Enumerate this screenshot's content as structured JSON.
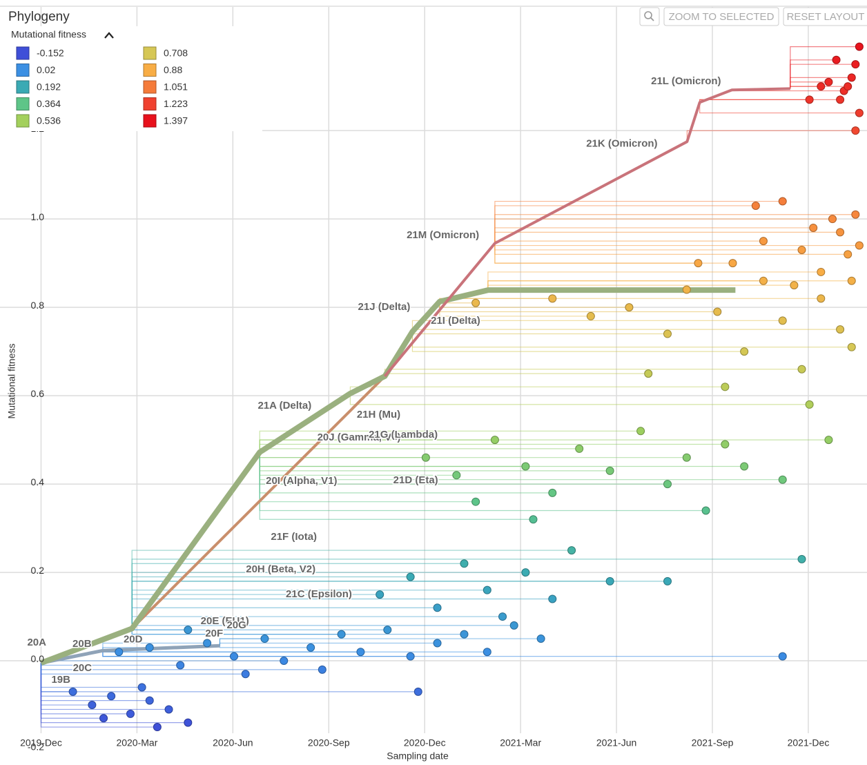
{
  "header": {
    "title": "Phylogeny",
    "buttons": [
      "ZOOM TO SELECTED",
      "RESET LAYOUT"
    ]
  },
  "chart_data": {
    "type": "scatter",
    "color_by": "Mutational fitness",
    "x_label": "Sampling date",
    "y_label": "Mutational fitness",
    "legend": [
      {
        "value": -0.152,
        "color": "#3f4fd8"
      },
      {
        "value": 0.02,
        "color": "#3b8fe3"
      },
      {
        "value": 0.192,
        "color": "#3aaab4"
      },
      {
        "value": 0.364,
        "color": "#5ec588"
      },
      {
        "value": 0.536,
        "color": "#a3d05c"
      },
      {
        "value": 0.708,
        "color": "#d6c755"
      },
      {
        "value": 0.88,
        "color": "#f8ad45"
      },
      {
        "value": 1.051,
        "color": "#f57b3a"
      },
      {
        "value": 1.223,
        "color": "#f0412f"
      },
      {
        "value": 1.397,
        "color": "#e8111c"
      }
    ],
    "xlim": [
      2019.81,
      2022.07
    ],
    "ylim": [
      -0.164,
      1.48
    ],
    "xticks": [
      {
        "value": 2019.917,
        "label": "2019-Dec"
      },
      {
        "value": 2020.167,
        "label": "2020-Mar"
      },
      {
        "value": 2020.417,
        "label": "2020-Jun"
      },
      {
        "value": 2020.667,
        "label": "2020-Sep"
      },
      {
        "value": 2020.917,
        "label": "2020-Dec"
      },
      {
        "value": 2021.167,
        "label": "2021-Mar"
      },
      {
        "value": 2021.417,
        "label": "2021-Jun"
      },
      {
        "value": 2021.667,
        "label": "2021-Sep"
      },
      {
        "value": 2021.917,
        "label": "2021-Dec"
      }
    ],
    "yticks": [
      -0.2,
      {
        "value": 0,
        "label": "0.0"
      },
      0.2,
      0.4,
      0.6,
      0.8,
      {
        "value": 1,
        "label": "1.0"
      },
      1.2
    ],
    "grid": true,
    "x": [
      2020.0,
      2020.05,
      2020.1,
      2020.15,
      2020.2,
      2020.25,
      2020.08,
      2020.18,
      2020.3,
      2020.22,
      2020.12,
      2020.2,
      2020.28,
      2020.35,
      2020.42,
      2020.5,
      2020.55,
      2020.62,
      2020.7,
      2020.75,
      2020.82,
      2020.88,
      2020.95,
      2021.02,
      2021.08,
      2021.15,
      2020.3,
      2020.45,
      2020.65,
      2021.22,
      2021.85,
      2020.9,
      2020.8,
      2020.88,
      2020.95,
      2021.02,
      2021.08,
      2021.12,
      2021.18,
      2021.25,
      2021.3,
      2021.4,
      2021.55,
      2021.9,
      2020.92,
      2021.0,
      2021.05,
      2021.1,
      2021.18,
      2021.25,
      2021.32,
      2021.4,
      2021.48,
      2021.55,
      2021.6,
      2021.65,
      2021.7,
      2021.75,
      2021.85,
      2021.97,
      2021.2,
      2021.05,
      2021.25,
      2021.35,
      2021.45,
      2021.55,
      2021.6,
      2021.68,
      2021.75,
      2021.8,
      2021.85,
      2021.9,
      2021.95,
      2022.0,
      2021.5,
      2021.7,
      2021.92,
      2022.03,
      2021.63,
      2021.72,
      2021.8,
      2021.85,
      2021.9,
      2021.95,
      2022.0,
      2022.02,
      2021.88,
      2021.98,
      2022.03,
      2022.04,
      2021.78,
      2021.93,
      2022.05,
      2021.95,
      2022.0,
      2022.03,
      2022.01,
      2022.04,
      2022.02,
      2021.99,
      2022.05,
      2022.04,
      2021.92,
      2022.05,
      2021.97
    ],
    "values": [
      -0.07,
      -0.1,
      -0.08,
      -0.12,
      -0.09,
      -0.11,
      -0.13,
      -0.06,
      -0.14,
      -0.15,
      0.02,
      0.03,
      -0.01,
      0.04,
      0.01,
      0.05,
      0.0,
      0.03,
      0.06,
      0.02,
      0.07,
      0.01,
      0.04,
      0.06,
      0.02,
      0.08,
      0.07,
      -0.03,
      -0.02,
      0.05,
      0.01,
      -0.07,
      0.15,
      0.19,
      0.12,
      0.22,
      0.16,
      0.1,
      0.2,
      0.14,
      0.25,
      0.18,
      0.18,
      0.23,
      0.46,
      0.42,
      0.36,
      0.5,
      0.44,
      0.38,
      0.48,
      0.43,
      0.52,
      0.4,
      0.46,
      0.34,
      0.49,
      0.44,
      0.41,
      0.5,
      0.32,
      0.81,
      0.82,
      0.78,
      0.8,
      0.74,
      0.84,
      0.79,
      0.7,
      0.86,
      0.77,
      0.66,
      0.82,
      0.75,
      0.65,
      0.62,
      0.58,
      0.71,
      0.9,
      0.9,
      0.95,
      1.04,
      0.93,
      0.88,
      0.97,
      0.92,
      0.85,
      1.0,
      0.86,
      1.01,
      1.03,
      0.98,
      0.94,
      1.3,
      1.27,
      1.32,
      1.29,
      1.35,
      1.3,
      1.36,
      1.24,
      1.2,
      1.27,
      1.39,
      1.31
    ],
    "branches": [
      {
        "color": "#8fa3b8",
        "x": [
          2019.917,
          2020.078,
          2020.383
        ],
        "values": [
          -0.005,
          0.023,
          0.034
        ]
      },
      {
        "color": "#c98f6c",
        "x": [
          2020.154,
          2020.813
        ],
        "values": [
          0.073,
          0.644
        ]
      },
      {
        "color": "#9ab07f",
        "x": [
          2019.917,
          2020.154,
          2020.487,
          2020.723,
          2020.813,
          2020.885,
          2020.956,
          2021.082,
          2021.727
        ],
        "values": [
          -0.005,
          0.073,
          0.472,
          0.605,
          0.644,
          0.745,
          0.813,
          0.839,
          0.839
        ]
      },
      {
        "color": "#c9737a",
        "x": [
          2020.813,
          2021.1,
          2021.601,
          2021.634,
          2021.718,
          2021.87
        ],
        "values": [
          0.644,
          0.945,
          1.175,
          1.264,
          1.292,
          1.295
        ]
      }
    ],
    "annotations": [
      {
        "text": "21L (Omicron)",
        "x": 2021.507,
        "y": 1.311
      },
      {
        "text": "21K (Omicron)",
        "x": 2021.338,
        "y": 1.17
      },
      {
        "text": "21M (Omicron)",
        "x": 2020.87,
        "y": 0.9625
      },
      {
        "text": "21J (Delta)",
        "x": 2020.743,
        "y": 0.8
      },
      {
        "text": "21I (Delta)",
        "x": 2020.933,
        "y": 0.769
      },
      {
        "text": "21A (Delta)",
        "x": 2020.482,
        "y": 0.577
      },
      {
        "text": "21H (Mu)",
        "x": 2020.74,
        "y": 0.556
      },
      {
        "text": "20J (Gamma, V3)",
        "x": 2020.637,
        "y": 0.505
      },
      {
        "text": "21G (Lambda)",
        "x": 2020.771,
        "y": 0.511
      },
      {
        "text": "20I (Alpha, V1)",
        "x": 2020.503,
        "y": 0.406
      },
      {
        "text": "21D (Eta)",
        "x": 2020.835,
        "y": 0.408
      },
      {
        "text": "21F (Iota)",
        "x": 2020.516,
        "y": 0.28
      },
      {
        "text": "20H (Beta, V2)",
        "x": 2020.451,
        "y": 0.206
      },
      {
        "text": "21C (Epsilon)",
        "x": 2020.555,
        "y": 0.15
      },
      {
        "text": "20E (EU1)",
        "x": 2020.333,
        "y": 0.089
      },
      {
        "text": "20G",
        "x": 2020.401,
        "y": 0.08
      },
      {
        "text": "20F",
        "x": 2020.345,
        "y": 0.061
      },
      {
        "text": "20D",
        "x": 2020.132,
        "y": 0.048
      },
      {
        "text": "20A",
        "x": 2019.881,
        "y": 0.041
      },
      {
        "text": "20B",
        "x": 2019.999,
        "y": 0.0375
      },
      {
        "text": "20C",
        "x": 2020.0,
        "y": -0.017
      },
      {
        "text": "19B",
        "x": 2019.944,
        "y": -0.044
      }
    ]
  }
}
